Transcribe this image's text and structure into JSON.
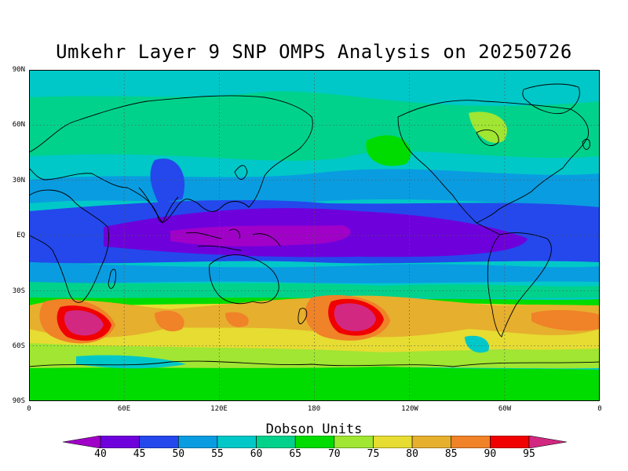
{
  "title": "Umkehr Layer 9 SNP OMPS Analysis on 20250726",
  "map": {
    "lat_ticks": [
      "90N",
      "60N",
      "30N",
      "EQ",
      "30S",
      "60S",
      "90S"
    ],
    "lon_ticks": [
      "0",
      "60E",
      "120E",
      "180",
      "120W",
      "60W",
      "0"
    ],
    "grid": "dotted",
    "coastlines": true,
    "projection": "cylindrical equidistant"
  },
  "colorbar": {
    "title": "Dobson Units",
    "levels": [
      "40",
      "45",
      "50",
      "55",
      "60",
      "65",
      "70",
      "75",
      "80",
      "85",
      "90",
      "95"
    ],
    "colors": [
      "#a000c8",
      "#6e00dc",
      "#2448ec",
      "#0a9ce0",
      "#00c8c8",
      "#00d28c",
      "#00dc00",
      "#a0e632",
      "#e6dc32",
      "#e6af2d",
      "#f08228",
      "#f00000",
      "#d22882"
    ]
  },
  "features": [
    {
      "name": "tropical minimum",
      "lat_range": "20S–15N",
      "value_du": "40–45"
    },
    {
      "name": "southern mid-latitude maximum",
      "lon": "30E",
      "lat": "45S",
      "value_du": "95"
    },
    {
      "name": "southern mid-latitude maximum",
      "lon": "165W",
      "lat": "42S",
      "value_du": "95"
    }
  ]
}
